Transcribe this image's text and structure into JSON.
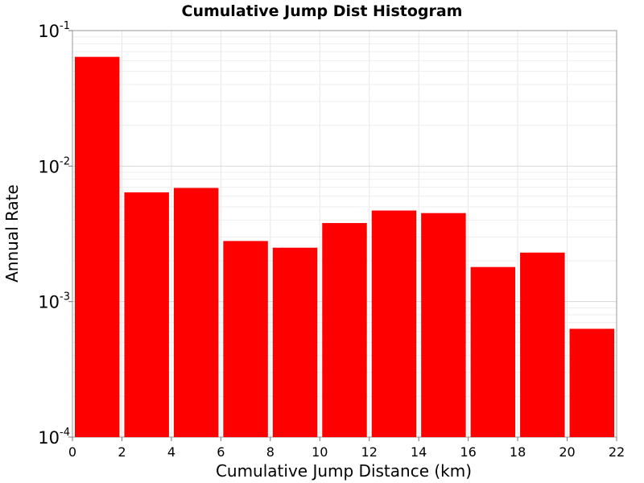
{
  "chart_data": {
    "type": "bar",
    "title": "Cumulative Jump Dist Histogram",
    "xlabel": "Cumulative Jump Distance (km)",
    "ylabel": "Annual Rate",
    "xlim": [
      0,
      22
    ],
    "ylim": [
      0.0001,
      0.1
    ],
    "yscale": "log",
    "x_ticks": [
      0,
      2,
      4,
      6,
      8,
      10,
      12,
      14,
      16,
      18,
      20,
      22
    ],
    "y_ticks": [
      {
        "base": "10",
        "exp": "-4",
        "value": 0.0001
      },
      {
        "base": "10",
        "exp": "-3",
        "value": 0.001
      },
      {
        "base": "10",
        "exp": "-2",
        "value": 0.01
      },
      {
        "base": "10",
        "exp": "-1",
        "value": 0.1
      }
    ],
    "grid": true,
    "bar_color": "#ff0000",
    "bins": [
      {
        "x0": 0,
        "x1": 2,
        "value": 0.064
      },
      {
        "x0": 2,
        "x1": 4,
        "value": 0.0064
      },
      {
        "x0": 4,
        "x1": 6,
        "value": 0.0069
      },
      {
        "x0": 6,
        "x1": 8,
        "value": 0.0028
      },
      {
        "x0": 8,
        "x1": 10,
        "value": 0.0025
      },
      {
        "x0": 10,
        "x1": 12,
        "value": 0.0038
      },
      {
        "x0": 12,
        "x1": 14,
        "value": 0.0047
      },
      {
        "x0": 14,
        "x1": 16,
        "value": 0.0045
      },
      {
        "x0": 16,
        "x1": 18,
        "value": 0.0018
      },
      {
        "x0": 18,
        "x1": 20,
        "value": 0.0023
      },
      {
        "x0": 20,
        "x1": 22,
        "value": 0.00063
      }
    ]
  }
}
